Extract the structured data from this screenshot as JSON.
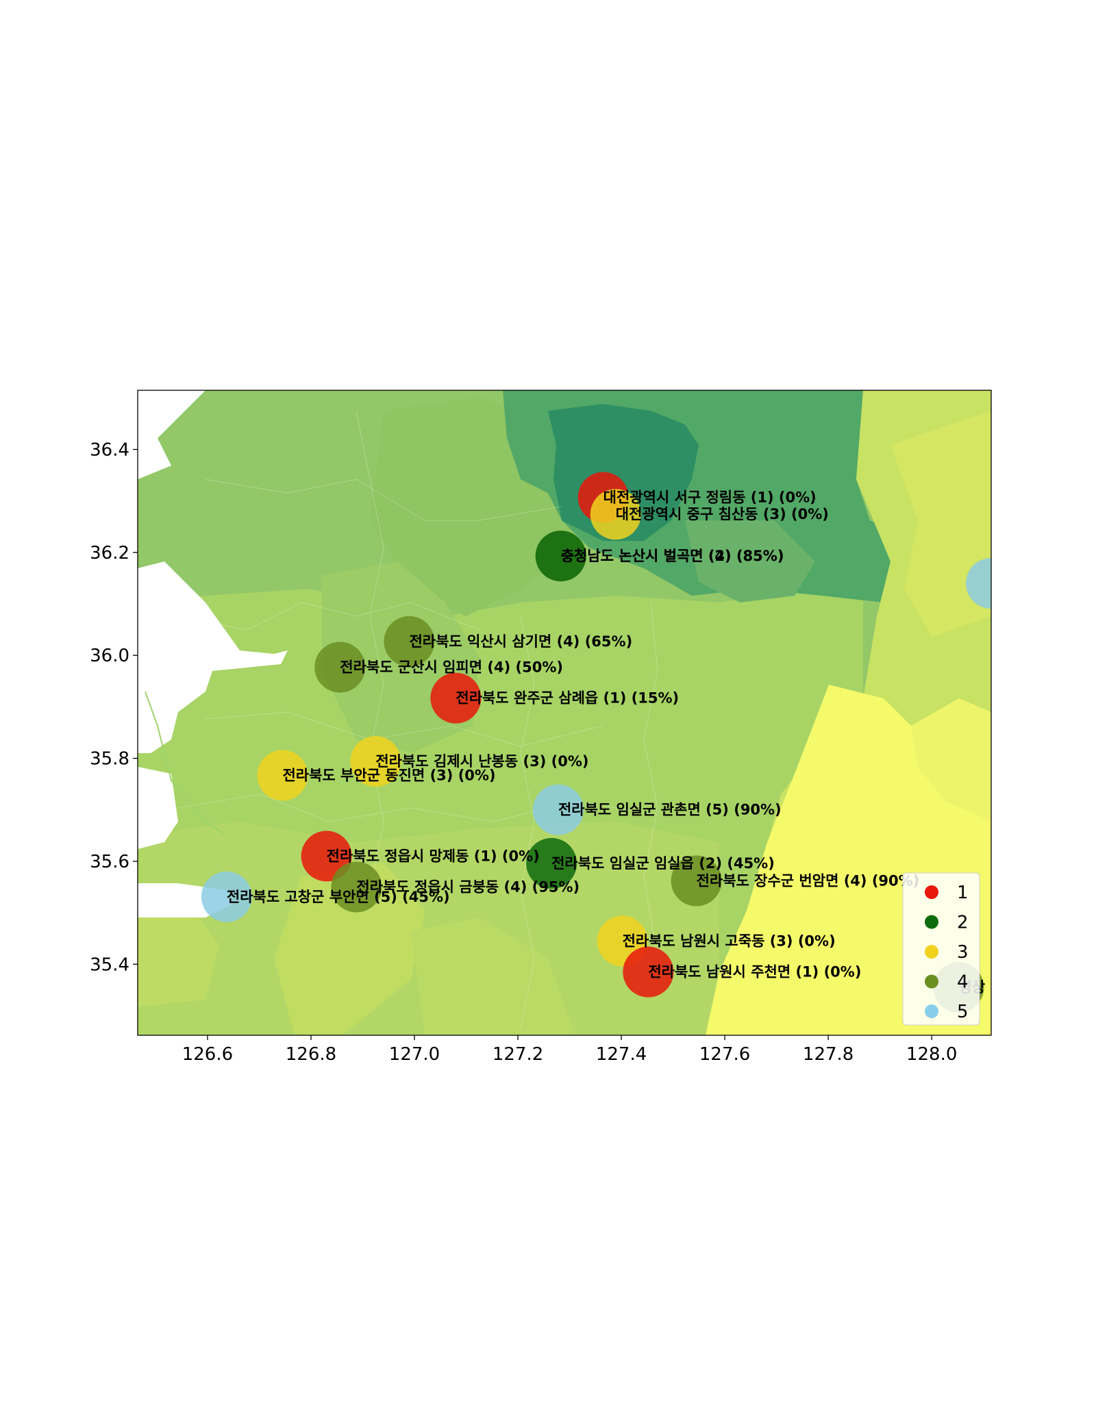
{
  "map": {
    "x_range": [
      126.465,
      128.115
    ],
    "y_range": [
      35.262,
      36.515
    ],
    "x_ticks": [
      "126.6",
      "126.8",
      "127.0",
      "127.2",
      "127.4",
      "127.6",
      "127.8",
      "128.0"
    ],
    "y_ticks": [
      "35.4",
      "35.6",
      "35.8",
      "36.0",
      "36.2",
      "36.4"
    ],
    "category_colors": {
      "1": "#e8170c",
      "2": "#0e6b0e",
      "3": "#f0d21e",
      "4": "#6b8e23",
      "5": "#8ccbe3"
    },
    "legend": [
      {
        "label": "1",
        "color": "#e8170c"
      },
      {
        "label": "2",
        "color": "#0e6b0e"
      },
      {
        "label": "3",
        "color": "#f0d21e"
      },
      {
        "label": "4",
        "color": "#6b8e23"
      },
      {
        "label": "5",
        "color": "#87ceeb"
      }
    ],
    "points": [
      {
        "lon": 127.365,
        "lat": 36.307,
        "category": "1",
        "label": "대전광역시 서구 정림동 (1) (0%)"
      },
      {
        "lon": 127.389,
        "lat": 36.274,
        "category": "3",
        "label": "대전광역시 중구 침산동 (3) (0%)"
      },
      {
        "lon": 127.283,
        "lat": 36.193,
        "category": "4",
        "label": "충청남도 논산시 벌곡면 (4) (85%)"
      },
      {
        "lon": 127.283,
        "lat": 36.193,
        "category": "2",
        "label": "충청남도 논산시 벌곡면 (2) (85%)"
      },
      {
        "lon": 128.115,
        "lat": 36.14,
        "category": "5",
        "label": ""
      },
      {
        "lon": 126.99,
        "lat": 36.027,
        "category": "4",
        "label": "전라북도 익산시 삼기면 (4) (65%)"
      },
      {
        "lon": 126.856,
        "lat": 35.977,
        "category": "4",
        "label": "전라북도 군산시 임피면 (4) (50%)"
      },
      {
        "lon": 127.08,
        "lat": 35.917,
        "category": "1",
        "label": "전라북도 완주군 삼례읍 (1) (15%)"
      },
      {
        "lon": 126.925,
        "lat": 35.794,
        "category": "3",
        "label": "전라북도 김제시 난봉동 (3) (0%)"
      },
      {
        "lon": 126.745,
        "lat": 35.767,
        "category": "3",
        "label": "전라북도 부안군 동진면 (3) (0%)"
      },
      {
        "lon": 127.278,
        "lat": 35.7,
        "category": "5",
        "label": "전라북도 임실군 관촌면 (5) (90%)"
      },
      {
        "lon": 126.83,
        "lat": 35.61,
        "category": "1",
        "label": "전라북도 정읍시 망제동 (1) (0%)"
      },
      {
        "lon": 127.265,
        "lat": 35.596,
        "category": "2",
        "label": "전라북도 임실군 임실읍 (2) (45%)"
      },
      {
        "lon": 127.545,
        "lat": 35.562,
        "category": "4",
        "label": "전라북도 장수군 번암면 (4) (90%)"
      },
      {
        "lon": 126.888,
        "lat": 35.55,
        "category": "4",
        "label": "전라북도 정읍시 금붕동 (4) (95%)"
      },
      {
        "lon": 126.637,
        "lat": 35.531,
        "category": "5",
        "label": "전라북도 고창군 부안면 (5) (45%)"
      },
      {
        "lon": 127.402,
        "lat": 35.445,
        "category": "3",
        "label": "전라북도 남원시 고죽동 (3) (0%)"
      },
      {
        "lon": 127.452,
        "lat": 35.385,
        "category": "1",
        "label": "전라북도 남원시 주천면 (1) (0%)"
      },
      {
        "lon": 128.052,
        "lat": 35.355,
        "category": "4",
        "label": "경상"
      }
    ]
  }
}
